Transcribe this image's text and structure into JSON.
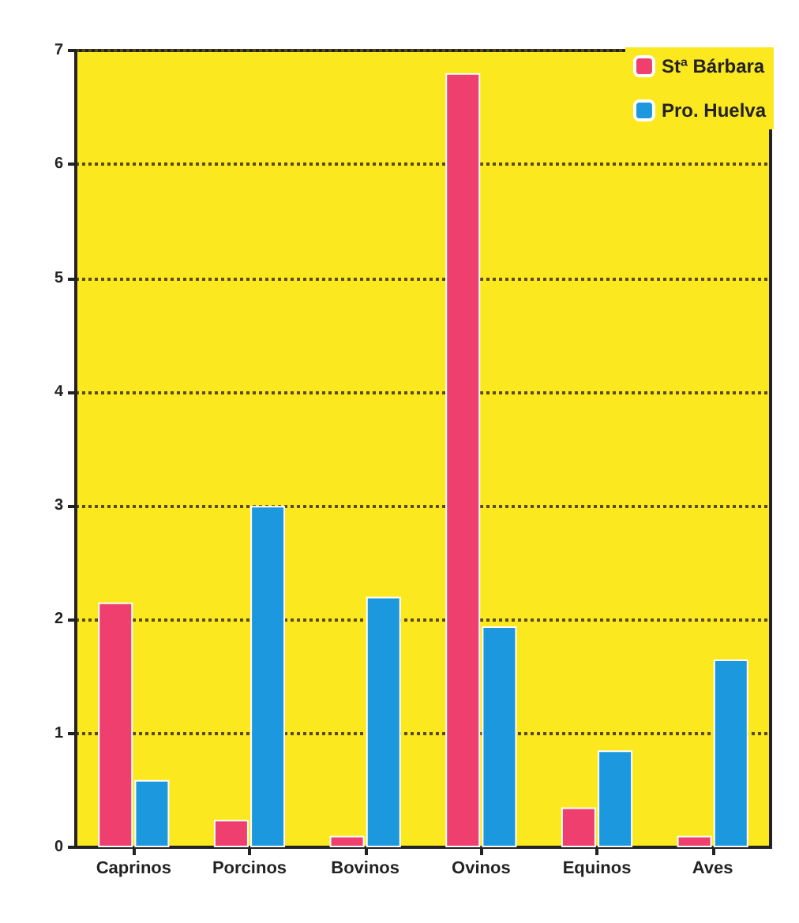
{
  "chart_data": {
    "type": "bar",
    "categories": [
      "Caprinos",
      "Porcinos",
      "Bovinos",
      "Ovinos",
      "Equinos",
      "Aves"
    ],
    "series": [
      {
        "name": "Stª Bárbara",
        "color": "#ee3f6e",
        "values": [
          2.15,
          0.24,
          0.1,
          6.8,
          0.35,
          0.1
        ]
      },
      {
        "name": "Pro. Huelva",
        "color": "#1c98de",
        "values": [
          0.59,
          3.0,
          2.2,
          1.94,
          0.85,
          1.65
        ]
      }
    ],
    "ylim": [
      0,
      7
    ],
    "yticks": [
      0,
      1,
      2,
      3,
      4,
      5,
      6,
      7
    ],
    "grid": "y",
    "legend": "top right"
  }
}
